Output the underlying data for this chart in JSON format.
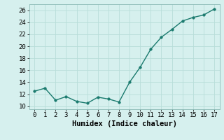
{
  "x": [
    0,
    1,
    2,
    3,
    4,
    5,
    6,
    7,
    8,
    9,
    10,
    11,
    12,
    13,
    14,
    15,
    16,
    17
  ],
  "y": [
    12.5,
    13.0,
    11.0,
    11.6,
    10.8,
    10.5,
    11.5,
    11.2,
    10.7,
    14.0,
    16.5,
    19.5,
    21.5,
    22.8,
    24.2,
    24.8,
    25.2,
    26.2
  ],
  "line_color": "#1a7a6e",
  "marker_color": "#1a7a6e",
  "bg_color": "#d6f0ee",
  "grid_color": "#b8ddd9",
  "xlabel": "Humidex (Indice chaleur)",
  "xlabel_fontsize": 7.5,
  "tick_fontsize": 6.5,
  "ylim": [
    9.5,
    27
  ],
  "xlim": [
    -0.5,
    17.5
  ],
  "yticks": [
    10,
    12,
    14,
    16,
    18,
    20,
    22,
    24,
    26
  ],
  "xticks": [
    0,
    1,
    2,
    3,
    4,
    5,
    6,
    7,
    8,
    9,
    10,
    11,
    12,
    13,
    14,
    15,
    16,
    17
  ]
}
